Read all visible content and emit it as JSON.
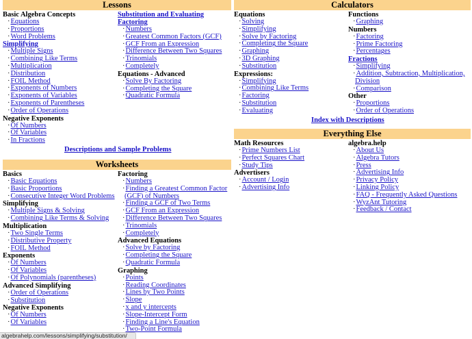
{
  "lessons": {
    "title": "Lessons",
    "col1": [
      {
        "head": "Basic Algebra Concepts",
        "link": false,
        "items": [
          "Equations",
          "Proportions",
          "Word Problems"
        ]
      },
      {
        "head": "Simplifying",
        "link": true,
        "items": [
          "Multiple Signs",
          "Combining Like Terms",
          "Multiplication",
          "Distribution",
          "FOIL Method",
          "Exponents of Numbers",
          "Exponents of Variables",
          "Exponents of Parentheses",
          "Order of Operations"
        ]
      },
      {
        "head": "Negative Exponents",
        "link": false,
        "items": [
          "Of Numbers",
          "Of Variables",
          "In Fractions"
        ]
      }
    ],
    "col2": [
      {
        "head": "Substitution and Evaluating",
        "link": true,
        "items": []
      },
      {
        "head": "Factoring",
        "link": true,
        "items": [
          "Numbers",
          "Greatest Common Factors (GCF)",
          "GCF From an Expression",
          "Difference Between Two Squares",
          "Trinomials",
          "Completely"
        ]
      },
      {
        "head": "Equations - Advanced",
        "link": false,
        "items": [
          "Solve By Factoring",
          "Completing the Square",
          "Quadratic Formula"
        ]
      }
    ],
    "footer_link": "Descriptions and Sample Problems"
  },
  "worksheets": {
    "title": "Worksheets",
    "col1": [
      {
        "head": "Basics",
        "items": [
          "Basic Equations",
          "Basic Proportions",
          "Consecutive Integer Word Problems"
        ]
      },
      {
        "head": "Simplifying",
        "items": [
          "Multiple Signs & Solving",
          "Combining Like Terms & Solving"
        ]
      },
      {
        "head": "Multiplication",
        "items": [
          "Two Single Terms",
          "Distributive Property",
          "FOIL Method"
        ]
      },
      {
        "head": "Exponents",
        "items": [
          "Of Numbers",
          "Of Variables",
          "Of Polynomials (parentheses)"
        ]
      },
      {
        "head": "Advanced Simplifying",
        "items": [
          "Order of Operations",
          "Substitution"
        ]
      },
      {
        "head": "Negative Exponents",
        "items": [
          "Of Numbers",
          "Of Variables"
        ]
      }
    ],
    "col2": [
      {
        "head": "Factoring",
        "items": [
          "Numbers",
          "Finding a Greatest Common Factor (GCF) of Numbers",
          "Finding a GCF of Two Terms",
          "GCF From an Expression",
          "Difference Between Two Squares",
          "Trinomials",
          "Completely"
        ]
      },
      {
        "head": "Advanced Equations",
        "items": [
          "Solve by Factoring",
          "Completing the Square",
          "Quadratic Formula"
        ]
      },
      {
        "head": "Graphing",
        "items": [
          "Points",
          "Reading Coordinates",
          "Lines by Two Points",
          "Slope",
          "x and y intercepts",
          "Slope-Intercept Form",
          "Finding a Line's Equation",
          "Two-Point Formula"
        ]
      }
    ]
  },
  "calculators": {
    "title": "Calculators",
    "col1": [
      {
        "head": "Equations",
        "link": false,
        "items": [
          "Solving",
          "Simplifying",
          "Solve by Factoring",
          "Completing the Square",
          "Graphing",
          "3D Graphing",
          "Substitution"
        ]
      },
      {
        "head": "Expressions:",
        "link": false,
        "items": [
          "Simplifying",
          "Combining Like Terms",
          "Factoring",
          "Substitution",
          "Evaluating"
        ]
      }
    ],
    "col2": [
      {
        "head": "Functions",
        "link": false,
        "items": [
          "Graphing"
        ]
      },
      {
        "head": "Numbers",
        "link": false,
        "items": [
          "Factoring",
          "Prime Factoring",
          "Percentages"
        ]
      },
      {
        "head": "Fractions",
        "link": true,
        "items": [
          "Simplifying",
          "Addition, Subtraction, Multiplication, Division",
          "Comparison"
        ]
      },
      {
        "head": "Other",
        "link": false,
        "items": [
          "Proportions",
          "Order of Operations"
        ]
      }
    ],
    "footer_link": "Index with Descriptions"
  },
  "everything_else": {
    "title": "Everything Else",
    "col1": [
      {
        "head": "Math Resources",
        "items": [
          "Prime Numbers List",
          "Perfect Squares Chart",
          "Study Tips"
        ]
      },
      {
        "head": "Advertisers",
        "items": [
          "Account / Login",
          "Advertising Info"
        ]
      }
    ],
    "col2": [
      {
        "head": "algebra.help",
        "items": [
          "About Us",
          "Algebra Tutors",
          "Press",
          "Advertising Info",
          "Privacy Policy",
          "Linking Policy",
          "FAQ - Frequently Asked Questions",
          "WyzAnt Tutoring",
          "Feedback / Contact"
        ]
      }
    ]
  },
  "status_bar": {
    "url": "algebrahelp.com/lessons/simplifying/substitution/"
  },
  "colors": {
    "section_bar": "#fbd38d",
    "link": "#1a13c8"
  }
}
